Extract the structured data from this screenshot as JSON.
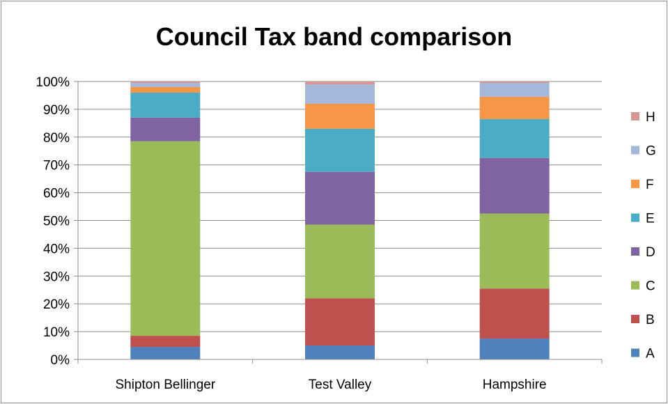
{
  "chart_data": {
    "type": "bar",
    "stacked": true,
    "normalized": true,
    "title": "Council Tax band comparison",
    "xlabel": "",
    "ylabel": "",
    "categories": [
      "Shipton Bellinger",
      "Test Valley",
      "Hampshire"
    ],
    "ylim": [
      0,
      100
    ],
    "yticks": [
      0,
      10,
      20,
      30,
      40,
      50,
      60,
      70,
      80,
      90,
      100
    ],
    "ytick_labels": [
      "0%",
      "10%",
      "20%",
      "30%",
      "40%",
      "50%",
      "60%",
      "70%",
      "80%",
      "90%",
      "100%"
    ],
    "grid": true,
    "legend_position": "right",
    "series": [
      {
        "name": "A",
        "color": "#4F81BD",
        "values": [
          4.5,
          5,
          7.5
        ]
      },
      {
        "name": "B",
        "color": "#C0504D",
        "values": [
          4,
          17,
          18
        ]
      },
      {
        "name": "C",
        "color": "#9BBB59",
        "values": [
          70,
          26.5,
          27
        ]
      },
      {
        "name": "D",
        "color": "#8064A2",
        "values": [
          8.5,
          19,
          20
        ]
      },
      {
        "name": "E",
        "color": "#4BACC6",
        "values": [
          9,
          15.5,
          14
        ]
      },
      {
        "name": "F",
        "color": "#F79646",
        "values": [
          2,
          9,
          8
        ]
      },
      {
        "name": "G",
        "color": "#A5B8DB",
        "values": [
          1.5,
          7,
          5
        ]
      },
      {
        "name": "H",
        "color": "#D99694",
        "values": [
          0.5,
          1,
          0.5
        ]
      }
    ]
  }
}
